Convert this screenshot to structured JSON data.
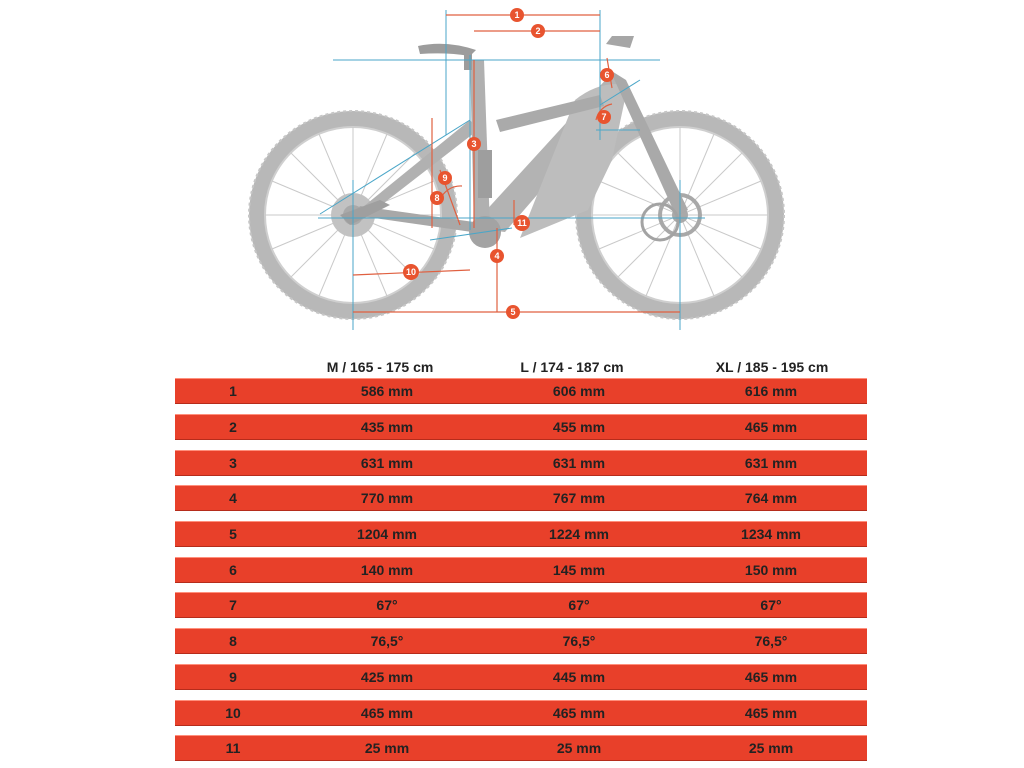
{
  "colors": {
    "row_fill": "#e8402a",
    "marker_fill": "#e8542f",
    "frame_gray": "#b8b8b8",
    "measure_line": "#e06040",
    "reference_line": "#4aa6c8"
  },
  "diagram": {
    "subject": "bike-geometry-diagram",
    "markers": [
      "1",
      "2",
      "3",
      "4",
      "5",
      "6",
      "7",
      "8",
      "9",
      "10",
      "11"
    ]
  },
  "table": {
    "headers": [
      "M / 165 - 175 cm",
      "L / 174 - 187 cm",
      "XL / 185 - 195 cm"
    ],
    "rows": [
      {
        "id": "1",
        "values": [
          "586 mm",
          "606 mm",
          "616 mm"
        ]
      },
      {
        "id": "2",
        "values": [
          "435 mm",
          "455 mm",
          "465 mm"
        ]
      },
      {
        "id": "3",
        "values": [
          "631 mm",
          "631 mm",
          "631 mm"
        ]
      },
      {
        "id": "4",
        "values": [
          "770 mm",
          "767 mm",
          "764 mm"
        ]
      },
      {
        "id": "5",
        "values": [
          "1204 mm",
          "1224 mm",
          "1234 mm"
        ]
      },
      {
        "id": "6",
        "values": [
          "140 mm",
          "145 mm",
          "150 mm"
        ]
      },
      {
        "id": "7",
        "values": [
          "67°",
          "67°",
          "67°"
        ]
      },
      {
        "id": "8",
        "values": [
          "76,5°",
          "76,5°",
          "76,5°"
        ]
      },
      {
        "id": "9",
        "values": [
          "425 mm",
          "445 mm",
          "465 mm"
        ]
      },
      {
        "id": "10",
        "values": [
          "465 mm",
          "465 mm",
          "465 mm"
        ]
      },
      {
        "id": "11",
        "values": [
          "25 mm",
          "25 mm",
          "25 mm"
        ]
      }
    ]
  }
}
